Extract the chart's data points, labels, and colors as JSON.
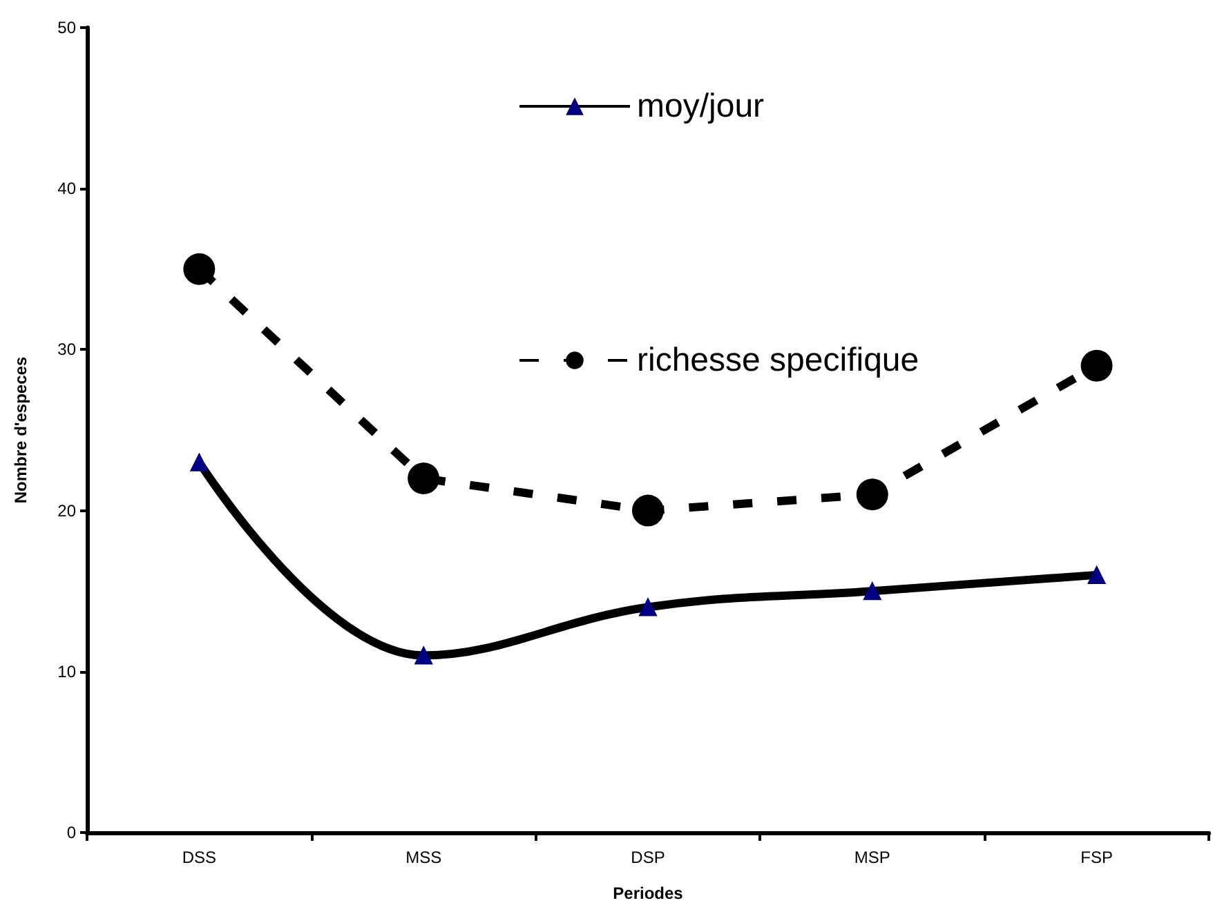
{
  "chart_data": {
    "type": "line",
    "xlabel": "Periodes",
    "ylabel": "Nombre d'especes",
    "categories": [
      "DSS",
      "MSS",
      "DSP",
      "MSP",
      "FSP"
    ],
    "series": [
      {
        "name": "moy/jour",
        "color": "#000000",
        "values": [
          23,
          11,
          14,
          15,
          16
        ],
        "marker": "triangle",
        "line_style": "solid"
      },
      {
        "name": "richesse specifique",
        "color": "#000000",
        "values": [
          35,
          22,
          20,
          21,
          29
        ],
        "marker": "circle",
        "line_style": "dashed"
      }
    ],
    "ylim": [
      0,
      50
    ],
    "yticks": [
      0,
      10,
      20,
      30,
      40,
      50
    ],
    "grid": false,
    "legend": "top"
  }
}
